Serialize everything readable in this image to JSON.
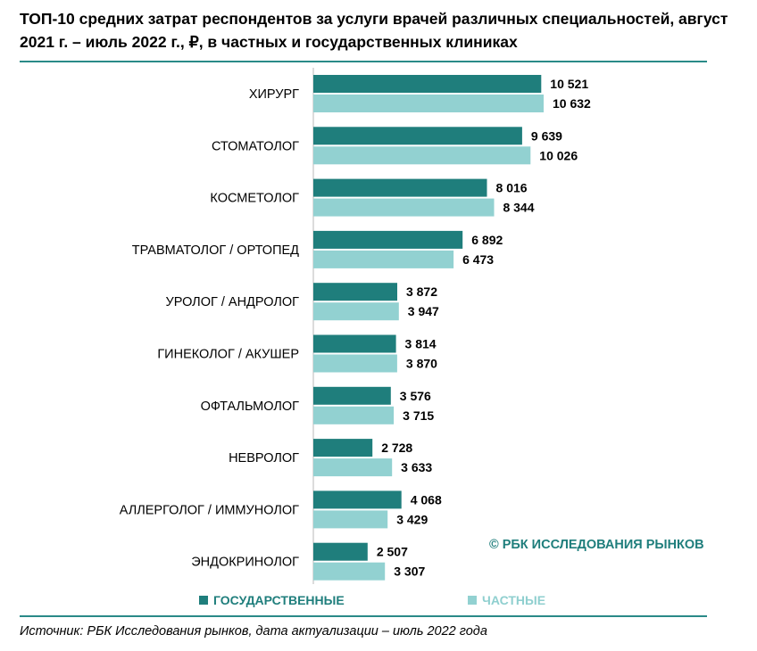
{
  "title": "ТОП-10 средних затрат респондентов за услуги врачей различных специальностей, август 2021 г. – июль 2022 г., ₽, в частных и государственных клиниках",
  "copyright": "© РБК ИССЛЕДОВАНИЯ РЫНКОВ",
  "source": "Источник: РБК Исследования рынков, дата актуализации – июль 2022 года",
  "colors": {
    "state": "#1f7e7c",
    "private": "#92d1d1",
    "rule": "#2a8a88"
  },
  "chart_data": {
    "type": "bar",
    "orientation": "horizontal",
    "title": "ТОП-10 средних затрат респондентов за услуги врачей различных специальностей, август 2021 г. – июль 2022 г., ₽, в частных и государственных клиниках",
    "categories": [
      "ХИРУРГ",
      "СТОМАТОЛОГ",
      "КОСМЕТОЛОГ",
      "ТРАВМАТОЛОГ / ОРТОПЕД",
      "УРОЛОГ / АНДРОЛОГ",
      "ГИНЕКОЛОГ / АКУШЕР",
      "ОФТАЛЬМОЛОГ",
      "НЕВРОЛОГ",
      "АЛЛЕРГОЛОГ / ИММУНОЛОГ",
      "ЭНДОКРИНОЛОГ"
    ],
    "series": [
      {
        "name": "ГОСУДАРСТВЕННЫЕ",
        "values": [
          10521,
          9639,
          8016,
          6892,
          3872,
          3814,
          3576,
          2728,
          4068,
          2507
        ],
        "labels": [
          "10 521",
          "9 639",
          "8 016",
          "6 892",
          "3 872",
          "3 814",
          "3 576",
          "2 728",
          "4 068",
          "2 507"
        ]
      },
      {
        "name": "ЧАСТНЫЕ",
        "values": [
          10632,
          10026,
          8344,
          6473,
          3947,
          3870,
          3715,
          3633,
          3429,
          3307
        ],
        "labels": [
          "10 632",
          "10 026",
          "8 344",
          "6 473",
          "3 947",
          "3 870",
          "3 715",
          "3 633",
          "3 429",
          "3 307"
        ]
      }
    ],
    "xlim": [
      0,
      10632
    ],
    "grid": false,
    "legend": "bottom"
  }
}
